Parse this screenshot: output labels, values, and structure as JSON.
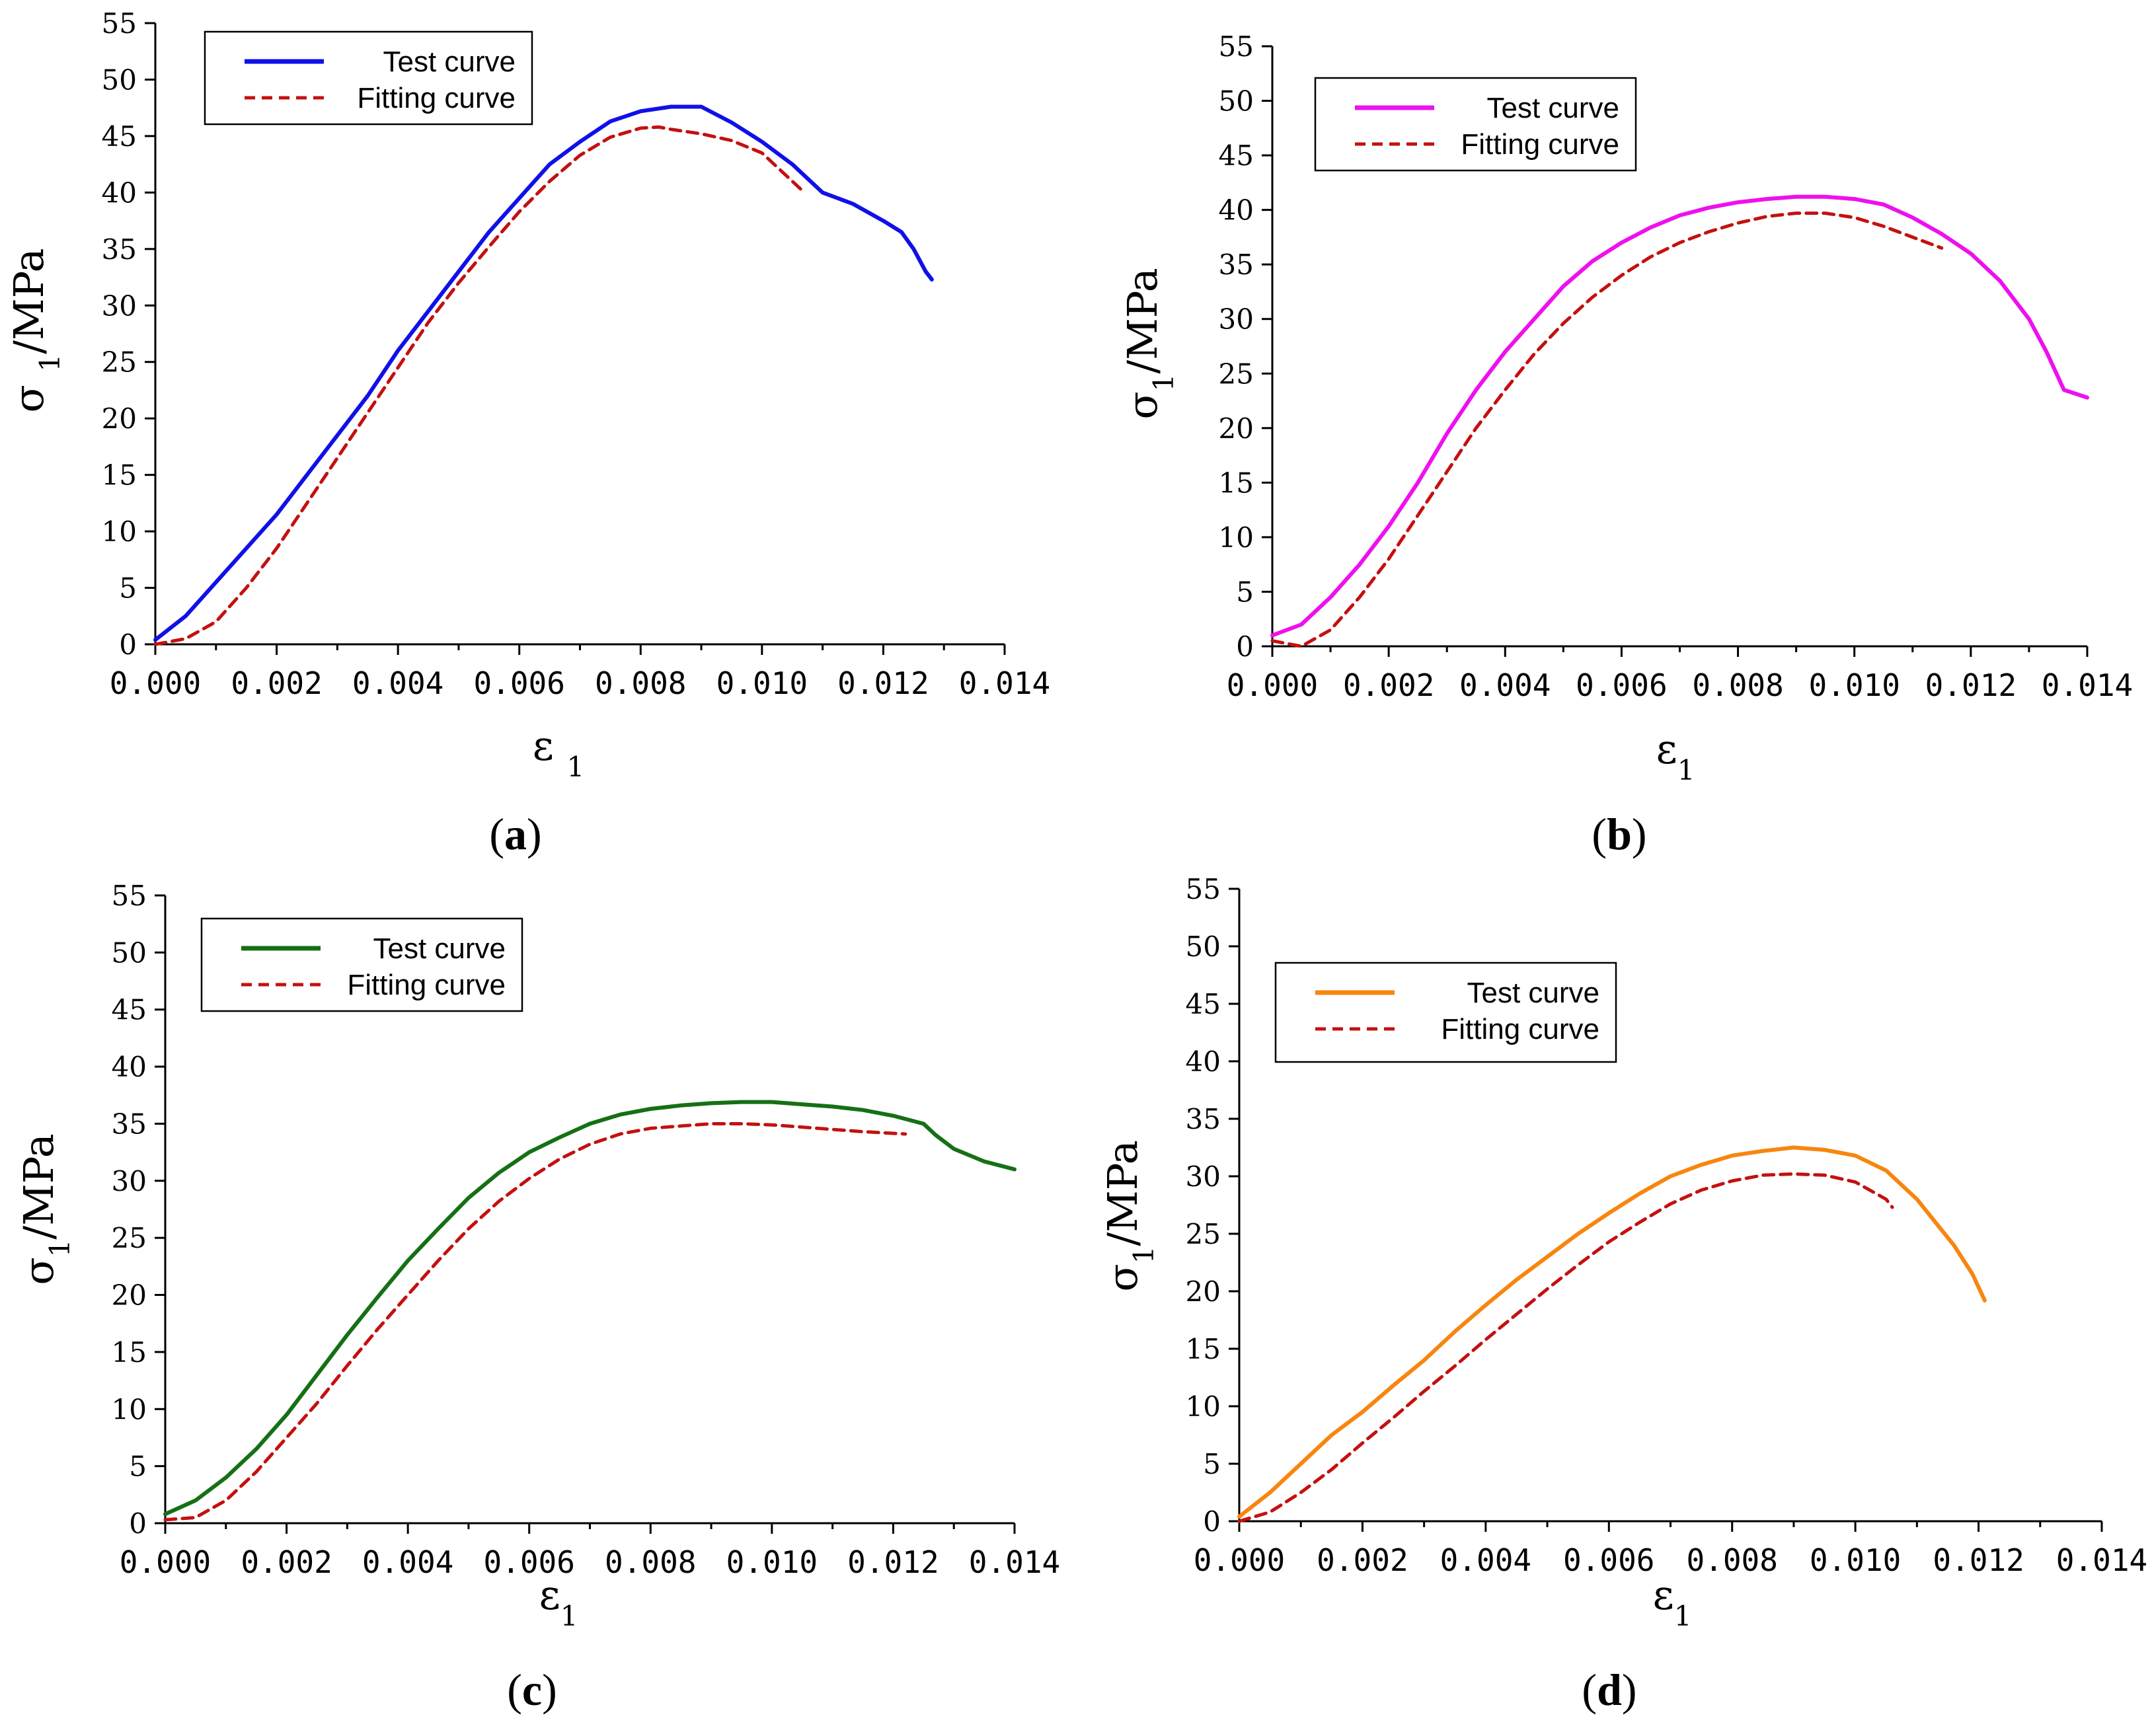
{
  "chart_data": [
    {
      "type": "line",
      "panel_label": "a",
      "xlabel": "ε 1",
      "ylabel": "σ 1/MPa",
      "xlim": [
        0,
        0.014
      ],
      "ylim": [
        0,
        55
      ],
      "xticks": [
        "0.000",
        "0.002",
        "0.004",
        "0.006",
        "0.008",
        "0.010",
        "0.012",
        "0.014"
      ],
      "yticks": [
        "0",
        "5",
        "10",
        "15",
        "20",
        "25",
        "30",
        "35",
        "40",
        "45",
        "50",
        "55"
      ],
      "legend_position": "top-left",
      "series": [
        {
          "name": "Test curve",
          "color": "#1010e8",
          "style": "solid",
          "points": [
            [
              0,
              0.4
            ],
            [
              0.0005,
              2.5
            ],
            [
              0.001,
              5.5
            ],
            [
              0.0015,
              8.5
            ],
            [
              0.002,
              11.5
            ],
            [
              0.0025,
              15
            ],
            [
              0.003,
              18.5
            ],
            [
              0.0035,
              22
            ],
            [
              0.004,
              26
            ],
            [
              0.0045,
              29.5
            ],
            [
              0.005,
              33
            ],
            [
              0.0055,
              36.5
            ],
            [
              0.006,
              39.5
            ],
            [
              0.0065,
              42.5
            ],
            [
              0.007,
              44.5
            ],
            [
              0.0075,
              46.3
            ],
            [
              0.008,
              47.2
            ],
            [
              0.0085,
              47.6
            ],
            [
              0.009,
              47.6
            ],
            [
              0.0095,
              46.2
            ],
            [
              0.01,
              44.5
            ],
            [
              0.0105,
              42.5
            ],
            [
              0.011,
              40
            ],
            [
              0.0115,
              39
            ],
            [
              0.012,
              37.5
            ],
            [
              0.0123,
              36.5
            ],
            [
              0.0125,
              35
            ],
            [
              0.0127,
              33
            ],
            [
              0.0128,
              32.3
            ]
          ]
        },
        {
          "name": "Fitting curve",
          "color": "#c41010",
          "style": "dashed",
          "points": [
            [
              0,
              0
            ],
            [
              0.0005,
              0.5
            ],
            [
              0.001,
              2
            ],
            [
              0.0015,
              5
            ],
            [
              0.002,
              8.5
            ],
            [
              0.0025,
              12.5
            ],
            [
              0.003,
              16.5
            ],
            [
              0.0035,
              20.5
            ],
            [
              0.004,
              24.5
            ],
            [
              0.0045,
              28.5
            ],
            [
              0.005,
              32
            ],
            [
              0.0055,
              35.2
            ],
            [
              0.006,
              38.3
            ],
            [
              0.0065,
              41
            ],
            [
              0.007,
              43.3
            ],
            [
              0.0075,
              44.9
            ],
            [
              0.008,
              45.7
            ],
            [
              0.0083,
              45.8
            ],
            [
              0.0085,
              45.6
            ],
            [
              0.009,
              45.2
            ],
            [
              0.0095,
              44.6
            ],
            [
              0.01,
              43.5
            ],
            [
              0.0105,
              41
            ],
            [
              0.0107,
              40
            ]
          ]
        }
      ]
    },
    {
      "type": "line",
      "panel_label": "b",
      "xlabel": "ε1",
      "ylabel": "σ1/MPa",
      "xlim": [
        0,
        0.014
      ],
      "ylim": [
        0,
        55
      ],
      "xticks": [
        "0.000",
        "0.002",
        "0.004",
        "0.006",
        "0.008",
        "0.010",
        "0.012",
        "0.014"
      ],
      "yticks": [
        "0",
        "5",
        "10",
        "15",
        "20",
        "25",
        "30",
        "35",
        "40",
        "45",
        "50",
        "55"
      ],
      "legend_position": "top-left",
      "series": [
        {
          "name": "Test curve",
          "color": "#ee10ee",
          "style": "solid",
          "points": [
            [
              0,
              1
            ],
            [
              0.0005,
              2
            ],
            [
              0.001,
              4.5
            ],
            [
              0.0015,
              7.5
            ],
            [
              0.002,
              11
            ],
            [
              0.0025,
              15
            ],
            [
              0.003,
              19.5
            ],
            [
              0.0035,
              23.5
            ],
            [
              0.004,
              27
            ],
            [
              0.0045,
              30
            ],
            [
              0.005,
              33
            ],
            [
              0.0055,
              35.3
            ],
            [
              0.006,
              37
            ],
            [
              0.0065,
              38.4
            ],
            [
              0.007,
              39.5
            ],
            [
              0.0075,
              40.2
            ],
            [
              0.008,
              40.7
            ],
            [
              0.0085,
              41
            ],
            [
              0.009,
              41.2
            ],
            [
              0.0095,
              41.2
            ],
            [
              0.01,
              41
            ],
            [
              0.0105,
              40.5
            ],
            [
              0.011,
              39.3
            ],
            [
              0.0115,
              37.8
            ],
            [
              0.012,
              36
            ],
            [
              0.0125,
              33.5
            ],
            [
              0.013,
              30
            ],
            [
              0.0133,
              27
            ],
            [
              0.0136,
              23.5
            ],
            [
              0.014,
              22.8
            ]
          ]
        },
        {
          "name": "Fitting curve",
          "color": "#c41010",
          "style": "dashed",
          "points": [
            [
              0,
              0.5
            ],
            [
              0.0005,
              0
            ],
            [
              0.001,
              1.5
            ],
            [
              0.0015,
              4.5
            ],
            [
              0.002,
              8
            ],
            [
              0.0025,
              12
            ],
            [
              0.003,
              16
            ],
            [
              0.0035,
              20
            ],
            [
              0.004,
              23.5
            ],
            [
              0.0045,
              26.8
            ],
            [
              0.005,
              29.6
            ],
            [
              0.0055,
              32
            ],
            [
              0.006,
              34
            ],
            [
              0.0065,
              35.7
            ],
            [
              0.007,
              37
            ],
            [
              0.0075,
              38
            ],
            [
              0.008,
              38.8
            ],
            [
              0.0085,
              39.4
            ],
            [
              0.009,
              39.7
            ],
            [
              0.0095,
              39.7
            ],
            [
              0.01,
              39.3
            ],
            [
              0.0105,
              38.5
            ],
            [
              0.011,
              37.5
            ],
            [
              0.0115,
              36.5
            ]
          ]
        }
      ]
    },
    {
      "type": "line",
      "panel_label": "c",
      "xlabel": "ε1",
      "ylabel": "σ1/MPa",
      "xlim": [
        0,
        0.014
      ],
      "ylim": [
        0,
        55
      ],
      "xticks": [
        "0.000",
        "0.002",
        "0.004",
        "0.006",
        "0.008",
        "0.010",
        "0.012",
        "0.014"
      ],
      "yticks": [
        "0",
        "5",
        "10",
        "15",
        "20",
        "25",
        "30",
        "35",
        "40",
        "45",
        "50",
        "55"
      ],
      "legend_position": "top-left",
      "series": [
        {
          "name": "Test curve",
          "color": "#157015",
          "style": "solid",
          "points": [
            [
              0,
              0.8
            ],
            [
              0.0005,
              2
            ],
            [
              0.001,
              4
            ],
            [
              0.0015,
              6.5
            ],
            [
              0.002,
              9.5
            ],
            [
              0.0025,
              13
            ],
            [
              0.003,
              16.5
            ],
            [
              0.0035,
              19.8
            ],
            [
              0.004,
              23
            ],
            [
              0.0045,
              25.8
            ],
            [
              0.005,
              28.5
            ],
            [
              0.0055,
              30.7
            ],
            [
              0.006,
              32.5
            ],
            [
              0.0065,
              33.8
            ],
            [
              0.007,
              35
            ],
            [
              0.0075,
              35.8
            ],
            [
              0.008,
              36.3
            ],
            [
              0.0085,
              36.6
            ],
            [
              0.009,
              36.8
            ],
            [
              0.0095,
              36.9
            ],
            [
              0.01,
              36.9
            ],
            [
              0.0105,
              36.7
            ],
            [
              0.011,
              36.5
            ],
            [
              0.0115,
              36.2
            ],
            [
              0.012,
              35.7
            ],
            [
              0.0125,
              35
            ],
            [
              0.0127,
              34
            ],
            [
              0.013,
              32.8
            ],
            [
              0.0135,
              31.7
            ],
            [
              0.014,
              31
            ]
          ]
        },
        {
          "name": "Fitting curve",
          "color": "#c41010",
          "style": "dashed",
          "points": [
            [
              0,
              0.3
            ],
            [
              0.0005,
              0.5
            ],
            [
              0.001,
              2
            ],
            [
              0.0015,
              4.5
            ],
            [
              0.002,
              7.5
            ],
            [
              0.0025,
              10.5
            ],
            [
              0.003,
              13.8
            ],
            [
              0.0035,
              17
            ],
            [
              0.004,
              20
            ],
            [
              0.0045,
              23
            ],
            [
              0.005,
              25.8
            ],
            [
              0.0055,
              28.2
            ],
            [
              0.006,
              30.2
            ],
            [
              0.0065,
              31.9
            ],
            [
              0.007,
              33.2
            ],
            [
              0.0075,
              34.1
            ],
            [
              0.008,
              34.6
            ],
            [
              0.0085,
              34.8
            ],
            [
              0.009,
              35
            ],
            [
              0.0095,
              35
            ],
            [
              0.01,
              34.9
            ],
            [
              0.0105,
              34.7
            ],
            [
              0.011,
              34.5
            ],
            [
              0.0115,
              34.3
            ],
            [
              0.0122,
              34.1
            ]
          ]
        }
      ]
    },
    {
      "type": "line",
      "panel_label": "d",
      "xlabel": "ε1",
      "ylabel": "σ1/MPa",
      "xlim": [
        0,
        0.014
      ],
      "ylim": [
        0,
        55
      ],
      "xticks": [
        "0.000",
        "0.002",
        "0.004",
        "0.006",
        "0.008",
        "0.010",
        "0.012",
        "0.014"
      ],
      "yticks": [
        "0",
        "5",
        "10",
        "15",
        "20",
        "25",
        "30",
        "35",
        "40",
        "45",
        "50",
        "55"
      ],
      "legend_position": "top-left",
      "series": [
        {
          "name": "Test curve",
          "color": "#f7860f",
          "style": "solid",
          "points": [
            [
              0,
              0.4
            ],
            [
              0.0005,
              2.5
            ],
            [
              0.001,
              5
            ],
            [
              0.0015,
              7.5
            ],
            [
              0.002,
              9.5
            ],
            [
              0.0025,
              11.8
            ],
            [
              0.003,
              14
            ],
            [
              0.0035,
              16.5
            ],
            [
              0.004,
              18.8
            ],
            [
              0.0045,
              21
            ],
            [
              0.005,
              23
            ],
            [
              0.0055,
              25
            ],
            [
              0.006,
              26.8
            ],
            [
              0.0065,
              28.5
            ],
            [
              0.007,
              30
            ],
            [
              0.0075,
              31
            ],
            [
              0.008,
              31.8
            ],
            [
              0.0085,
              32.2
            ],
            [
              0.009,
              32.5
            ],
            [
              0.0095,
              32.3
            ],
            [
              0.01,
              31.8
            ],
            [
              0.0105,
              30.5
            ],
            [
              0.011,
              28
            ],
            [
              0.0113,
              26
            ],
            [
              0.0116,
              24
            ],
            [
              0.0119,
              21.5
            ],
            [
              0.0121,
              19.2
            ]
          ]
        },
        {
          "name": "Fitting curve",
          "color": "#c41010",
          "style": "dashed",
          "points": [
            [
              0,
              0
            ],
            [
              0.0005,
              0.8
            ],
            [
              0.001,
              2.5
            ],
            [
              0.0015,
              4.5
            ],
            [
              0.002,
              6.8
            ],
            [
              0.0025,
              9
            ],
            [
              0.003,
              11.3
            ],
            [
              0.0035,
              13.5
            ],
            [
              0.004,
              15.8
            ],
            [
              0.0045,
              18
            ],
            [
              0.005,
              20.2
            ],
            [
              0.0055,
              22.3
            ],
            [
              0.006,
              24.3
            ],
            [
              0.0065,
              26
            ],
            [
              0.007,
              27.6
            ],
            [
              0.0075,
              28.8
            ],
            [
              0.008,
              29.6
            ],
            [
              0.0085,
              30.1
            ],
            [
              0.009,
              30.2
            ],
            [
              0.0095,
              30.1
            ],
            [
              0.01,
              29.5
            ],
            [
              0.0105,
              28
            ],
            [
              0.0106,
              27.3
            ]
          ]
        }
      ]
    }
  ]
}
